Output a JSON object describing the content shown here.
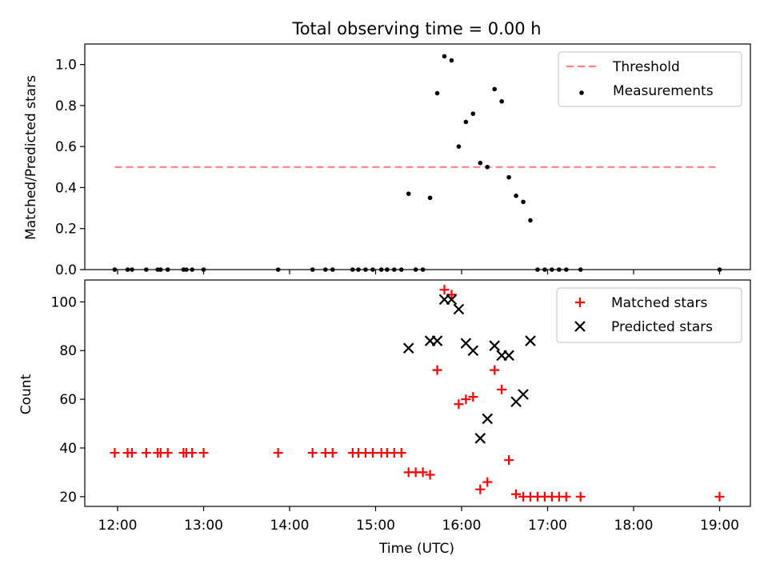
{
  "chart_data": [
    {
      "type": "scatter",
      "title": "Total observing time = 0.00 h",
      "ylabel": "Matched/Predicted stars",
      "ylim": [
        0,
        1.1
      ],
      "yticks": [
        "0.0",
        "0.2",
        "0.4",
        "0.6",
        "0.8",
        "1.0"
      ],
      "xlabel": "",
      "legend_position": "top-right",
      "threshold": {
        "name": "Threshold",
        "value": 0.5,
        "x_range": [
          "11:58",
          "19:00"
        ],
        "color": "#ff8080",
        "style": "dashed"
      },
      "series": [
        {
          "name": "Measurements",
          "color": "#000000",
          "marker": "dot",
          "points": [
            [
              "11:58",
              0.0
            ],
            [
              "12:07",
              0.0
            ],
            [
              "12:10",
              0.0
            ],
            [
              "12:20",
              0.0
            ],
            [
              "12:28",
              0.0
            ],
            [
              "12:30",
              0.0
            ],
            [
              "12:35",
              0.0
            ],
            [
              "12:46",
              0.0
            ],
            [
              "12:48",
              0.0
            ],
            [
              "12:52",
              0.0
            ],
            [
              "13:00",
              0.0
            ],
            [
              "13:52",
              0.0
            ],
            [
              "14:16",
              0.0
            ],
            [
              "14:25",
              0.0
            ],
            [
              "14:30",
              0.0
            ],
            [
              "14:44",
              0.0
            ],
            [
              "14:48",
              0.0
            ],
            [
              "14:53",
              0.0
            ],
            [
              "14:58",
              0.0
            ],
            [
              "15:04",
              0.0
            ],
            [
              "15:08",
              0.0
            ],
            [
              "15:13",
              0.0
            ],
            [
              "15:18",
              0.0
            ],
            [
              "15:28",
              0.0
            ],
            [
              "15:33",
              0.0
            ],
            [
              "15:23",
              0.37
            ],
            [
              "15:38",
              0.35
            ],
            [
              "15:43",
              0.86
            ],
            [
              "15:48",
              1.04
            ],
            [
              "15:53",
              1.02
            ],
            [
              "15:58",
              0.6
            ],
            [
              "16:03",
              0.72
            ],
            [
              "16:08",
              0.76
            ],
            [
              "16:13",
              0.52
            ],
            [
              "16:18",
              0.5
            ],
            [
              "16:23",
              0.88
            ],
            [
              "16:28",
              0.82
            ],
            [
              "16:33",
              0.45
            ],
            [
              "16:38",
              0.36
            ],
            [
              "16:43",
              0.33
            ],
            [
              "16:48",
              0.24
            ],
            [
              "16:53",
              0.0
            ],
            [
              "16:58",
              0.0
            ],
            [
              "17:03",
              0.0
            ],
            [
              "17:08",
              0.0
            ],
            [
              "17:13",
              0.0
            ],
            [
              "17:23",
              0.0
            ],
            [
              "19:00",
              0.0
            ]
          ]
        }
      ]
    },
    {
      "type": "scatter",
      "title": "",
      "ylabel": "Count",
      "xlabel": "Time (UTC)",
      "ylim": [
        16,
        109
      ],
      "yticks": [
        "20",
        "40",
        "60",
        "80",
        "100"
      ],
      "xticks": [
        "12:00",
        "13:00",
        "14:00",
        "15:00",
        "16:00",
        "17:00",
        "18:00",
        "19:00"
      ],
      "legend_position": "top-right",
      "series": [
        {
          "name": "Matched stars",
          "color": "#ff0000",
          "marker": "plus",
          "points": [
            [
              "11:58",
              38
            ],
            [
              "12:07",
              38
            ],
            [
              "12:10",
              38
            ],
            [
              "12:20",
              38
            ],
            [
              "12:28",
              38
            ],
            [
              "12:30",
              38
            ],
            [
              "12:35",
              38
            ],
            [
              "12:46",
              38
            ],
            [
              "12:48",
              38
            ],
            [
              "12:52",
              38
            ],
            [
              "13:00",
              38
            ],
            [
              "13:52",
              38
            ],
            [
              "14:16",
              38
            ],
            [
              "14:25",
              38
            ],
            [
              "14:30",
              38
            ],
            [
              "14:44",
              38
            ],
            [
              "14:48",
              38
            ],
            [
              "14:53",
              38
            ],
            [
              "14:58",
              38
            ],
            [
              "15:04",
              38
            ],
            [
              "15:08",
              38
            ],
            [
              "15:13",
              38
            ],
            [
              "15:18",
              38
            ],
            [
              "15:23",
              30
            ],
            [
              "15:28",
              30
            ],
            [
              "15:33",
              30
            ],
            [
              "15:38",
              29
            ],
            [
              "15:43",
              72
            ],
            [
              "15:48",
              105
            ],
            [
              "15:53",
              103
            ],
            [
              "15:58",
              58
            ],
            [
              "16:03",
              60
            ],
            [
              "16:08",
              61
            ],
            [
              "16:13",
              23
            ],
            [
              "16:18",
              26
            ],
            [
              "16:23",
              72
            ],
            [
              "16:28",
              64
            ],
            [
              "16:33",
              35
            ],
            [
              "16:38",
              21
            ],
            [
              "16:43",
              20
            ],
            [
              "16:48",
              20
            ],
            [
              "16:53",
              20
            ],
            [
              "16:58",
              20
            ],
            [
              "17:03",
              20
            ],
            [
              "17:08",
              20
            ],
            [
              "17:13",
              20
            ],
            [
              "17:23",
              20
            ],
            [
              "19:00",
              20
            ]
          ]
        },
        {
          "name": "Predicted stars",
          "color": "#000000",
          "marker": "x",
          "points": [
            [
              "15:23",
              81
            ],
            [
              "15:38",
              84
            ],
            [
              "15:43",
              84
            ],
            [
              "15:48",
              101
            ],
            [
              "15:53",
              101
            ],
            [
              "15:58",
              97
            ],
            [
              "16:03",
              83
            ],
            [
              "16:08",
              80
            ],
            [
              "16:13",
              44
            ],
            [
              "16:18",
              52
            ],
            [
              "16:23",
              82
            ],
            [
              "16:28",
              78
            ],
            [
              "16:33",
              78
            ],
            [
              "16:38",
              59
            ],
            [
              "16:43",
              62
            ],
            [
              "16:48",
              84
            ]
          ]
        }
      ]
    }
  ]
}
